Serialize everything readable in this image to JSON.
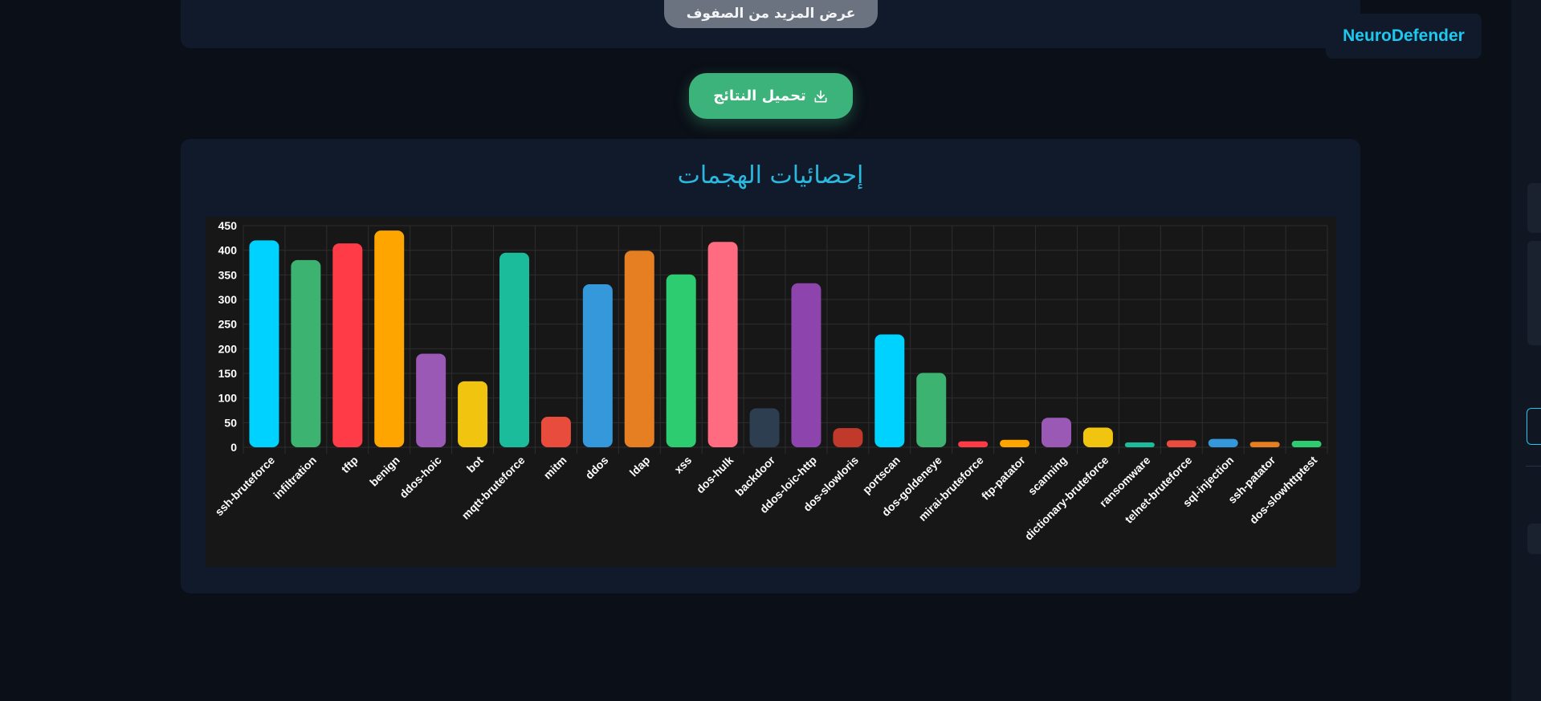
{
  "top": {
    "show_more_label": "عرض المزيد من الصفوف"
  },
  "brand": {
    "name": "NeuroDefender"
  },
  "download": {
    "label": "تحميل النتائج",
    "icon": "download-icon"
  },
  "stats": {
    "title": "إحصائيات الهجمات"
  },
  "chart_data": {
    "type": "bar",
    "categories": [
      "ssh-bruteforce",
      "infiltration",
      "tftp",
      "benign",
      "ddos-hoic",
      "bot",
      "mqtt-bruteforce",
      "mitm",
      "ddos",
      "ldap",
      "xss",
      "dos-hulk",
      "backdoor",
      "ddos-loic-http",
      "dos-slowloris",
      "portscan",
      "dos-goldeneye",
      "mirai-bruteforce",
      "ftp-patator",
      "scanning",
      "dictionary-bruteforce",
      "ransomware",
      "telnet-bruteforce",
      "sql-injection",
      "ssh-patator",
      "dos-slowhttptest"
    ],
    "values": [
      420,
      380,
      414,
      440,
      190,
      134,
      395,
      62,
      331,
      399,
      351,
      417,
      79,
      333,
      39,
      229,
      151,
      12,
      15,
      60,
      40,
      9,
      14,
      17,
      11,
      13
    ],
    "colors": [
      "#00d2ff",
      "#3cb371",
      "#ff3b47",
      "#ffa500",
      "#9b59b6",
      "#f1c40f",
      "#1abc9c",
      "#e74c3c",
      "#3498db",
      "#e67e22",
      "#2ecc71",
      "#ff6b81",
      "#2c3e50",
      "#8e44ad",
      "#c0392b",
      "#00d2ff",
      "#3cb371",
      "#ff3b47",
      "#ffa500",
      "#9b59b6",
      "#f1c40f",
      "#1abc9c",
      "#e74c3c",
      "#3498db",
      "#e67e22",
      "#2ecc71"
    ],
    "y_ticks": [
      "0",
      "50",
      "100",
      "150",
      "200",
      "250",
      "300",
      "350",
      "400",
      "450"
    ],
    "ylim": [
      0,
      450
    ],
    "grid": true,
    "legend": "none"
  }
}
